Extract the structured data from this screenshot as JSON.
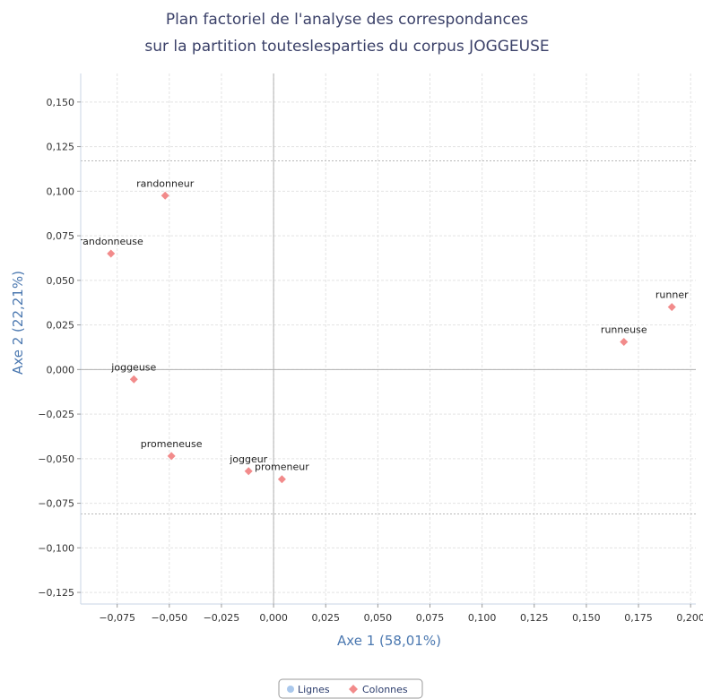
{
  "chart_data": {
    "type": "scatter",
    "title": [
      "Plan factoriel de l'analyse des correspondances",
      "sur la partition touteslesparties du corpus JOGGEUSE"
    ],
    "xlabel": "Axe 1 (58,01%)",
    "ylabel": "Axe 2 (22,21%)",
    "xlim": [
      -0.0925,
      0.2025
    ],
    "ylim": [
      -0.1315,
      0.166
    ],
    "xticks": [
      -0.075,
      -0.05,
      -0.025,
      0.0,
      0.025,
      0.05,
      0.075,
      0.1,
      0.125,
      0.15,
      0.175,
      0.2
    ],
    "xtick_labels": [
      "−0,075",
      "−0,050",
      "−0,025",
      "0,000",
      "0,025",
      "0,050",
      "0,075",
      "0,100",
      "0,125",
      "0,150",
      "0,175",
      "0,200"
    ],
    "yticks": [
      0.15,
      0.125,
      0.1,
      0.075,
      0.05,
      0.025,
      0.0,
      -0.025,
      -0.05,
      -0.075,
      -0.1,
      -0.125
    ],
    "ytick_labels": [
      "0,150",
      "0,125",
      "0,100",
      "0,075",
      "0,050",
      "0,025",
      "0,000",
      "−0,025",
      "−0,050",
      "−0,075",
      "−0,100",
      "−0,125"
    ],
    "grid": true,
    "reference_lines_y": [
      0.117,
      -0.081
    ],
    "legend": {
      "placement": "bottom-center",
      "entries": [
        "Lignes",
        "Colonnes"
      ]
    },
    "series": [
      {
        "name": "Lignes",
        "color": "#aac8ec",
        "marker": "circle",
        "points": []
      },
      {
        "name": "Colonnes",
        "color": "#f28b8b",
        "marker": "diamond",
        "points": [
          {
            "label": "randonneur",
            "x": -0.052,
            "y": 0.0975
          },
          {
            "label": "randonneuse",
            "x": -0.078,
            "y": 0.065
          },
          {
            "label": "joggeuse",
            "x": -0.067,
            "y": -0.0055
          },
          {
            "label": "promeneuse",
            "x": -0.049,
            "y": -0.0485
          },
          {
            "label": "joggeur",
            "x": -0.012,
            "y": -0.057
          },
          {
            "label": "promeneur",
            "x": 0.004,
            "y": -0.0615
          },
          {
            "label": "runneuse",
            "x": 0.168,
            "y": 0.0155
          },
          {
            "label": "runner",
            "x": 0.191,
            "y": 0.035
          }
        ]
      }
    ]
  }
}
